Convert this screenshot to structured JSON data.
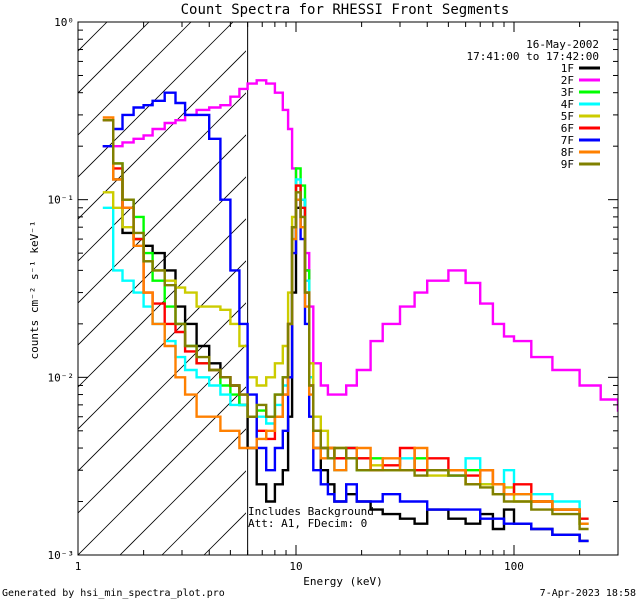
{
  "chart_data": {
    "type": "line",
    "title": "Count Spectra for RHESSI Front Segments",
    "xlabel": "Energy (keV)",
    "ylabel": "counts cm⁻² s⁻¹ keV⁻¹",
    "x_scale": "log",
    "y_scale": "log",
    "xlim": [
      1,
      300
    ],
    "ylim": [
      0.001,
      1
    ],
    "x_ticks": [
      {
        "value": 1,
        "label": "1"
      },
      {
        "value": 10,
        "label": "10"
      },
      {
        "value": 100,
        "label": "100"
      }
    ],
    "y_ticks": [
      {
        "value": 0.001,
        "label": "10⁻³"
      },
      {
        "value": 0.01,
        "label": "10⁻²"
      },
      {
        "value": 0.1,
        "label": "10⁻¹"
      },
      {
        "value": 1,
        "label": "10⁰"
      }
    ],
    "hatched_region": {
      "x_start": 1,
      "x_end": 6
    },
    "date_label": "16-May-2002",
    "time_label": "17:41:00 to 17:42:00",
    "annotation_lines": [
      "Includes Background",
      "Att: A1, FDecim: 0"
    ],
    "legend_position": "top-right",
    "series": [
      {
        "name": "1F",
        "color": "#000000",
        "x": [
          1.3,
          1.45,
          1.6,
          1.8,
          2.0,
          2.2,
          2.5,
          2.8,
          3.1,
          3.5,
          4.0,
          4.5,
          5.0,
          5.5,
          6.0,
          6.6,
          7.3,
          8.0,
          8.7,
          9.2,
          9.6,
          10.0,
          10.5,
          11.0,
          11.5,
          12.0,
          13,
          14,
          15,
          17,
          19,
          22,
          25,
          30,
          35,
          40,
          50,
          60,
          70,
          80,
          90,
          100,
          120,
          150,
          200
        ],
        "y": [
          0.2,
          0.13,
          0.065,
          0.06,
          0.055,
          0.05,
          0.04,
          0.025,
          0.02,
          0.015,
          0.012,
          0.01,
          0.009,
          0.007,
          0.004,
          0.0025,
          0.002,
          0.0025,
          0.003,
          0.006,
          0.03,
          0.09,
          0.1,
          0.04,
          0.01,
          0.004,
          0.003,
          0.0025,
          0.002,
          0.0022,
          0.002,
          0.0018,
          0.0017,
          0.0016,
          0.0015,
          0.0018,
          0.0016,
          0.0015,
          0.0017,
          0.0014,
          0.0018,
          0.0015,
          0.0014,
          0.0013,
          0.0012
        ]
      },
      {
        "name": "2F",
        "color": "#ff00ff",
        "x": [
          1.3,
          1.45,
          1.6,
          1.8,
          2.0,
          2.2,
          2.5,
          2.8,
          3.1,
          3.5,
          4.0,
          4.5,
          5.0,
          5.5,
          6.0,
          6.6,
          7.3,
          8.0,
          8.7,
          9.2,
          9.6,
          10.0,
          10.5,
          11.0,
          11.5,
          12.0,
          13,
          14,
          15,
          17,
          19,
          22,
          25,
          30,
          35,
          40,
          50,
          60,
          70,
          80,
          90,
          100,
          120,
          150,
          200,
          250,
          300
        ],
        "y": [
          0.2,
          0.2,
          0.21,
          0.22,
          0.23,
          0.25,
          0.27,
          0.28,
          0.3,
          0.32,
          0.33,
          0.34,
          0.38,
          0.42,
          0.45,
          0.47,
          0.45,
          0.4,
          0.32,
          0.25,
          0.15,
          0.11,
          0.08,
          0.05,
          0.025,
          0.012,
          0.009,
          0.008,
          0.008,
          0.009,
          0.011,
          0.016,
          0.02,
          0.025,
          0.03,
          0.035,
          0.04,
          0.034,
          0.026,
          0.02,
          0.017,
          0.016,
          0.013,
          0.011,
          0.009,
          0.0075,
          0.0065
        ]
      },
      {
        "name": "3F",
        "color": "#00ff00",
        "x": [
          1.3,
          1.45,
          1.6,
          1.8,
          2.0,
          2.2,
          2.5,
          2.8,
          3.1,
          3.5,
          4.0,
          4.5,
          5.0,
          5.5,
          6.0,
          6.6,
          7.3,
          8.0,
          8.7,
          9.2,
          9.6,
          10.0,
          10.5,
          11.0,
          11.5,
          12.0,
          13,
          14,
          15,
          17,
          19,
          22,
          25,
          30,
          35,
          40,
          50,
          60,
          70,
          80,
          90,
          100,
          120,
          150,
          200
        ],
        "y": [
          0.28,
          0.16,
          0.1,
          0.08,
          0.05,
          0.035,
          0.025,
          0.02,
          0.015,
          0.012,
          0.011,
          0.009,
          0.008,
          0.007,
          0.006,
          0.0065,
          0.006,
          0.008,
          0.01,
          0.02,
          0.07,
          0.15,
          0.12,
          0.04,
          0.01,
          0.005,
          0.004,
          0.004,
          0.0035,
          0.004,
          0.003,
          0.0035,
          0.003,
          0.003,
          0.0035,
          0.003,
          0.0028,
          0.003,
          0.0025,
          0.0025,
          0.0022,
          0.0022,
          0.002,
          0.0018,
          0.0015
        ]
      },
      {
        "name": "4F",
        "color": "#00ffff",
        "x": [
          1.3,
          1.45,
          1.6,
          1.8,
          2.0,
          2.2,
          2.5,
          2.8,
          3.1,
          3.5,
          4.0,
          4.5,
          5.0,
          5.5,
          6.0,
          6.6,
          7.3,
          8.0,
          8.7,
          9.2,
          9.6,
          10.0,
          10.5,
          11.0,
          11.5,
          12.0,
          13,
          14,
          15,
          17,
          19,
          22,
          25,
          30,
          35,
          40,
          50,
          60,
          70,
          80,
          90,
          100,
          120,
          150,
          200
        ],
        "y": [
          0.09,
          0.04,
          0.035,
          0.03,
          0.025,
          0.02,
          0.016,
          0.013,
          0.011,
          0.01,
          0.009,
          0.008,
          0.007,
          0.007,
          0.006,
          0.006,
          0.0055,
          0.007,
          0.009,
          0.02,
          0.06,
          0.13,
          0.1,
          0.035,
          0.01,
          0.005,
          0.004,
          0.0035,
          0.003,
          0.004,
          0.0035,
          0.003,
          0.003,
          0.0035,
          0.003,
          0.003,
          0.0028,
          0.0035,
          0.0025,
          0.0025,
          0.003,
          0.0022,
          0.0022,
          0.002,
          0.0016
        ]
      },
      {
        "name": "5F",
        "color": "#cccc00",
        "x": [
          1.3,
          1.45,
          1.6,
          1.8,
          2.0,
          2.2,
          2.5,
          2.8,
          3.1,
          3.5,
          4.0,
          4.5,
          5.0,
          5.5,
          6.0,
          6.6,
          7.3,
          8.0,
          8.7,
          9.2,
          9.6,
          10.0,
          10.5,
          11.0,
          11.5,
          12.0,
          13,
          14,
          15,
          17,
          19,
          22,
          25,
          30,
          35,
          40,
          50,
          60,
          70,
          80,
          90,
          100,
          120,
          150,
          200
        ],
        "y": [
          0.11,
          0.09,
          0.07,
          0.06,
          0.045,
          0.04,
          0.035,
          0.032,
          0.03,
          0.025,
          0.025,
          0.024,
          0.02,
          0.015,
          0.01,
          0.009,
          0.01,
          0.012,
          0.015,
          0.03,
          0.08,
          0.12,
          0.07,
          0.03,
          0.012,
          0.006,
          0.005,
          0.004,
          0.004,
          0.0035,
          0.0035,
          0.0032,
          0.003,
          0.003,
          0.003,
          0.0028,
          0.003,
          0.0025,
          0.0025,
          0.0022,
          0.0024,
          0.002,
          0.002,
          0.0018,
          0.0015
        ]
      },
      {
        "name": "6F",
        "color": "#ff0000",
        "x": [
          1.3,
          1.45,
          1.6,
          1.8,
          2.0,
          2.2,
          2.5,
          2.8,
          3.1,
          3.5,
          4.0,
          4.5,
          5.0,
          5.5,
          6.0,
          6.6,
          7.3,
          8.0,
          8.7,
          9.2,
          9.6,
          10.0,
          10.5,
          11.0,
          11.5,
          12.0,
          13,
          14,
          15,
          17,
          19,
          22,
          25,
          30,
          35,
          40,
          50,
          60,
          70,
          80,
          90,
          100,
          120,
          150,
          200
        ],
        "y": [
          0.28,
          0.15,
          0.09,
          0.06,
          0.03,
          0.026,
          0.02,
          0.018,
          0.014,
          0.012,
          0.011,
          0.01,
          0.009,
          0.008,
          0.006,
          0.005,
          0.0045,
          0.006,
          0.008,
          0.02,
          0.07,
          0.12,
          0.09,
          0.03,
          0.009,
          0.005,
          0.004,
          0.004,
          0.0035,
          0.004,
          0.0035,
          0.003,
          0.0032,
          0.004,
          0.003,
          0.0035,
          0.003,
          0.0028,
          0.003,
          0.0025,
          0.0022,
          0.0025,
          0.002,
          0.0018,
          0.0016
        ]
      },
      {
        "name": "7F",
        "color": "#0000ff",
        "x": [
          1.3,
          1.45,
          1.6,
          1.8,
          2.0,
          2.2,
          2.5,
          2.8,
          3.1,
          3.5,
          4.0,
          4.5,
          5.0,
          5.5,
          6.0,
          6.6,
          7.3,
          8.0,
          8.7,
          9.2,
          9.6,
          10.0,
          10.5,
          11.0,
          11.5,
          12.0,
          13,
          14,
          15,
          17,
          19,
          22,
          25,
          30,
          35,
          40,
          50,
          60,
          70,
          80,
          90,
          100,
          120,
          150,
          200
        ],
        "y": [
          0.2,
          0.25,
          0.3,
          0.33,
          0.34,
          0.36,
          0.4,
          0.35,
          0.3,
          0.3,
          0.22,
          0.1,
          0.04,
          0.02,
          0.008,
          0.004,
          0.003,
          0.004,
          0.005,
          0.01,
          0.05,
          0.1,
          0.06,
          0.02,
          0.006,
          0.003,
          0.0025,
          0.0022,
          0.002,
          0.0025,
          0.002,
          0.002,
          0.0022,
          0.002,
          0.002,
          0.0018,
          0.0018,
          0.0018,
          0.0016,
          0.0016,
          0.0015,
          0.0015,
          0.0014,
          0.0013,
          0.0012
        ]
      },
      {
        "name": "8F",
        "color": "#ff8000",
        "x": [
          1.3,
          1.45,
          1.6,
          1.8,
          2.0,
          2.2,
          2.5,
          2.8,
          3.1,
          3.5,
          4.0,
          4.5,
          5.0,
          5.5,
          6.0,
          6.6,
          7.3,
          8.0,
          8.7,
          9.2,
          9.6,
          10.0,
          10.5,
          11.0,
          11.5,
          12.0,
          13,
          14,
          15,
          17,
          19,
          22,
          25,
          30,
          35,
          40,
          50,
          60,
          70,
          80,
          90,
          100,
          120,
          150,
          200
        ],
        "y": [
          0.29,
          0.13,
          0.09,
          0.055,
          0.03,
          0.02,
          0.015,
          0.01,
          0.008,
          0.006,
          0.006,
          0.005,
          0.005,
          0.004,
          0.004,
          0.0045,
          0.005,
          0.006,
          0.008,
          0.02,
          0.06,
          0.1,
          0.07,
          0.025,
          0.008,
          0.004,
          0.0035,
          0.004,
          0.003,
          0.0035,
          0.004,
          0.003,
          0.0035,
          0.003,
          0.004,
          0.003,
          0.003,
          0.0025,
          0.003,
          0.0025,
          0.0022,
          0.0022,
          0.002,
          0.0018,
          0.0015
        ]
      },
      {
        "name": "9F",
        "color": "#808000",
        "x": [
          1.3,
          1.45,
          1.6,
          1.8,
          2.0,
          2.2,
          2.5,
          2.8,
          3.1,
          3.5,
          4.0,
          4.5,
          5.0,
          5.5,
          6.0,
          6.6,
          7.3,
          8.0,
          8.7,
          9.2,
          9.6,
          10.0,
          10.5,
          11.0,
          11.5,
          12.0,
          13,
          14,
          15,
          17,
          19,
          22,
          25,
          30,
          35,
          40,
          50,
          60,
          70,
          80,
          90,
          100,
          120,
          150,
          200
        ],
        "y": [
          0.28,
          0.16,
          0.1,
          0.065,
          0.045,
          0.04,
          0.033,
          0.02,
          0.015,
          0.013,
          0.011,
          0.01,
          0.009,
          0.008,
          0.006,
          0.007,
          0.006,
          0.008,
          0.01,
          0.02,
          0.07,
          0.11,
          0.08,
          0.03,
          0.009,
          0.005,
          0.004,
          0.0035,
          0.004,
          0.0035,
          0.003,
          0.003,
          0.003,
          0.003,
          0.0028,
          0.003,
          0.0028,
          0.0025,
          0.0024,
          0.0022,
          0.002,
          0.002,
          0.0018,
          0.0017,
          0.0014
        ]
      }
    ]
  },
  "footer": {
    "generated_by": "Generated by hsi_min_spectra_plot.pro",
    "timestamp": "7-Apr-2023 18:58"
  }
}
